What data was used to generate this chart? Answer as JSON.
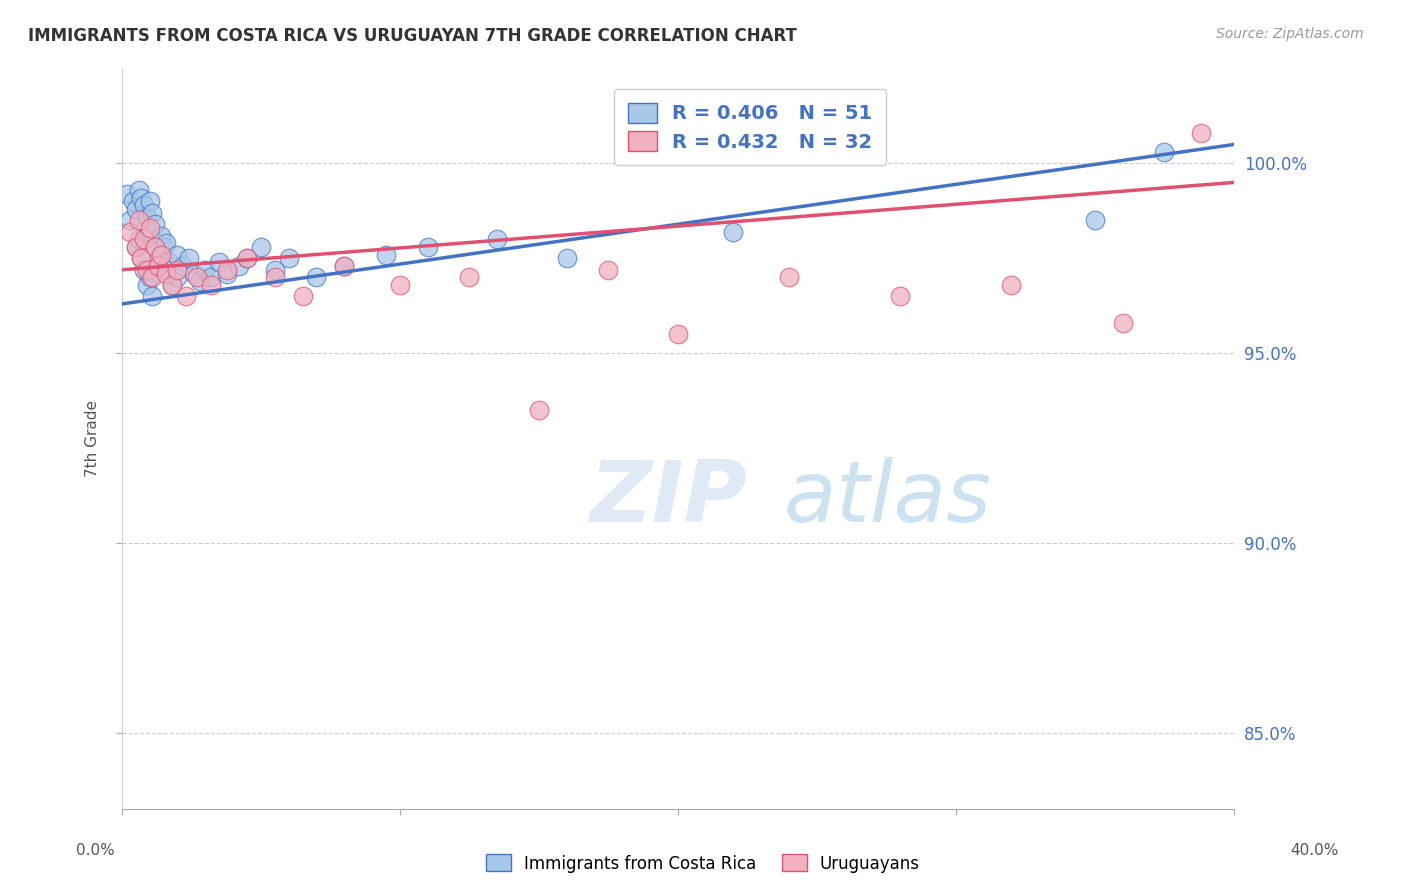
{
  "title": "IMMIGRANTS FROM COSTA RICA VS URUGUAYAN 7TH GRADE CORRELATION CHART",
  "source": "Source: ZipAtlas.com",
  "ylabel": "7th Grade",
  "yticks": [
    85.0,
    90.0,
    95.0,
    100.0
  ],
  "xmin": 0.0,
  "xmax": 40.0,
  "ymin": 83.0,
  "ymax": 102.5,
  "legend_label1": "Immigrants from Costa Rica",
  "legend_label2": "Uruguayans",
  "R1": 0.406,
  "N1": 51,
  "R2": 0.432,
  "N2": 32,
  "color_blue": "#a8c8e8",
  "color_pink": "#f0b0c0",
  "line_blue": "#4472c4",
  "line_pink": "#e05070",
  "text_color_blue": "#4472c4",
  "watermark_zip": "ZIP",
  "watermark_atlas": "atlas",
  "background": "#ffffff",
  "blue_scatter_x": [
    0.2,
    0.3,
    0.4,
    0.5,
    0.5,
    0.6,
    0.6,
    0.7,
    0.7,
    0.8,
    0.8,
    0.9,
    0.9,
    1.0,
    1.0,
    1.0,
    1.1,
    1.1,
    1.2,
    1.2,
    1.3,
    1.4,
    1.5,
    1.5,
    1.6,
    1.7,
    1.8,
    2.0,
    2.0,
    2.2,
    2.4,
    2.6,
    2.8,
    3.0,
    3.2,
    3.5,
    3.8,
    4.2,
    4.5,
    5.0,
    5.5,
    6.0,
    7.0,
    8.0,
    9.5,
    11.0,
    13.5,
    16.0,
    22.0,
    35.0,
    37.5
  ],
  "blue_scatter_y": [
    99.2,
    98.5,
    99.0,
    98.8,
    97.8,
    99.3,
    98.0,
    99.1,
    97.5,
    98.9,
    97.2,
    98.6,
    96.8,
    99.0,
    98.2,
    97.0,
    98.7,
    96.5,
    98.4,
    97.8,
    97.5,
    98.1,
    97.8,
    97.2,
    97.9,
    97.4,
    96.8,
    97.6,
    97.0,
    97.3,
    97.5,
    97.1,
    96.9,
    97.2,
    97.0,
    97.4,
    97.1,
    97.3,
    97.5,
    97.8,
    97.2,
    97.5,
    97.0,
    97.3,
    97.6,
    97.8,
    98.0,
    97.5,
    98.2,
    98.5,
    100.3
  ],
  "pink_scatter_x": [
    0.3,
    0.5,
    0.6,
    0.7,
    0.8,
    0.9,
    1.0,
    1.1,
    1.2,
    1.3,
    1.4,
    1.6,
    1.8,
    2.0,
    2.3,
    2.7,
    3.2,
    3.8,
    4.5,
    5.5,
    6.5,
    8.0,
    10.0,
    12.5,
    15.0,
    17.5,
    20.0,
    24.0,
    28.0,
    32.0,
    36.0,
    38.8
  ],
  "pink_scatter_y": [
    98.2,
    97.8,
    98.5,
    97.5,
    98.0,
    97.2,
    98.3,
    97.0,
    97.8,
    97.3,
    97.6,
    97.1,
    96.8,
    97.2,
    96.5,
    97.0,
    96.8,
    97.2,
    97.5,
    97.0,
    96.5,
    97.3,
    96.8,
    97.0,
    93.5,
    97.2,
    95.5,
    97.0,
    96.5,
    96.8,
    95.8,
    100.8
  ],
  "xtick_positions": [
    0.0,
    10.0,
    20.0,
    30.0,
    40.0
  ]
}
